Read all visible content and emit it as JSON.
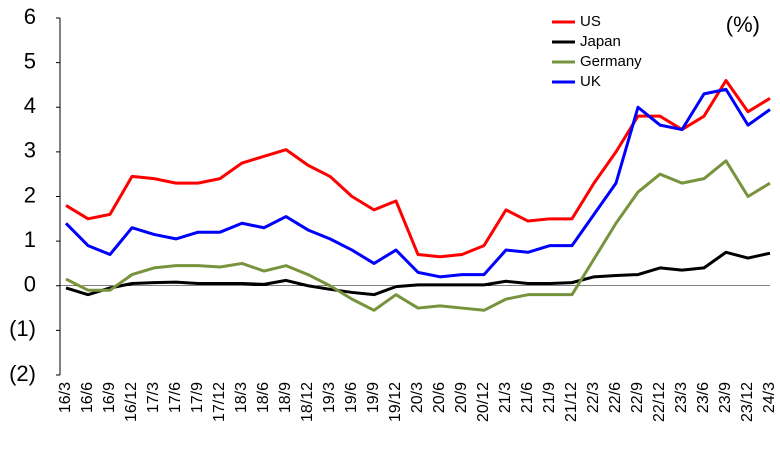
{
  "chart_data": {
    "type": "line",
    "unit": "(%)",
    "categories": [
      "16/3",
      "16/6",
      "16/9",
      "16/12",
      "17/3",
      "17/6",
      "17/9",
      "17/12",
      "18/3",
      "18/6",
      "18/9",
      "18/12",
      "19/3",
      "19/6",
      "19/9",
      "19/12",
      "20/3",
      "20/6",
      "20/9",
      "20/12",
      "21/3",
      "21/6",
      "21/9",
      "21/12",
      "22/3",
      "22/6",
      "22/9",
      "22/12",
      "23/3",
      "23/6",
      "23/9",
      "23/12",
      "24/3"
    ],
    "series": [
      {
        "name": "US",
        "color": "#ff0000",
        "values": [
          1.8,
          1.5,
          1.6,
          2.45,
          2.4,
          2.3,
          2.3,
          2.4,
          2.75,
          2.9,
          3.05,
          2.7,
          2.45,
          2.0,
          1.7,
          1.9,
          0.7,
          0.65,
          0.7,
          0.9,
          1.7,
          1.45,
          1.5,
          1.5,
          2.3,
          3.0,
          3.8,
          3.8,
          3.5,
          3.8,
          4.6,
          3.9,
          4.2
        ]
      },
      {
        "name": "Japan",
        "color": "#000000",
        "values": [
          -0.05,
          -0.2,
          -0.05,
          0.05,
          0.07,
          0.08,
          0.05,
          0.05,
          0.05,
          0.03,
          0.12,
          0.0,
          -0.08,
          -0.15,
          -0.2,
          -0.02,
          0.02,
          0.02,
          0.02,
          0.02,
          0.1,
          0.05,
          0.05,
          0.07,
          0.2,
          0.23,
          0.25,
          0.4,
          0.35,
          0.4,
          0.75,
          0.62,
          0.73
        ]
      },
      {
        "name": "Germany",
        "color": "#77933c",
        "values": [
          0.15,
          -0.1,
          -0.1,
          0.25,
          0.4,
          0.45,
          0.45,
          0.42,
          0.5,
          0.33,
          0.45,
          0.25,
          0.0,
          -0.3,
          -0.55,
          -0.2,
          -0.5,
          -0.45,
          -0.5,
          -0.55,
          -0.3,
          -0.2,
          -0.2,
          -0.2,
          0.6,
          1.4,
          2.1,
          2.5,
          2.3,
          2.4,
          2.8,
          2.0,
          2.3
        ]
      },
      {
        "name": "UK",
        "color": "#0000ff",
        "values": [
          1.4,
          0.9,
          0.7,
          1.3,
          1.15,
          1.05,
          1.2,
          1.2,
          1.4,
          1.3,
          1.55,
          1.25,
          1.05,
          0.8,
          0.5,
          0.8,
          0.3,
          0.2,
          0.25,
          0.25,
          0.8,
          0.75,
          0.9,
          0.9,
          1.6,
          2.3,
          4.0,
          3.6,
          3.5,
          4.3,
          4.4,
          3.6,
          3.95
        ]
      }
    ],
    "ylim": [
      -2,
      6
    ],
    "yticks": [
      {
        "value": -2,
        "label": "(2)"
      },
      {
        "value": -1,
        "label": "(1)"
      },
      0,
      1,
      2,
      3,
      4,
      5,
      6
    ],
    "negative_label_color": "#ff0000",
    "legend": "upper right"
  }
}
